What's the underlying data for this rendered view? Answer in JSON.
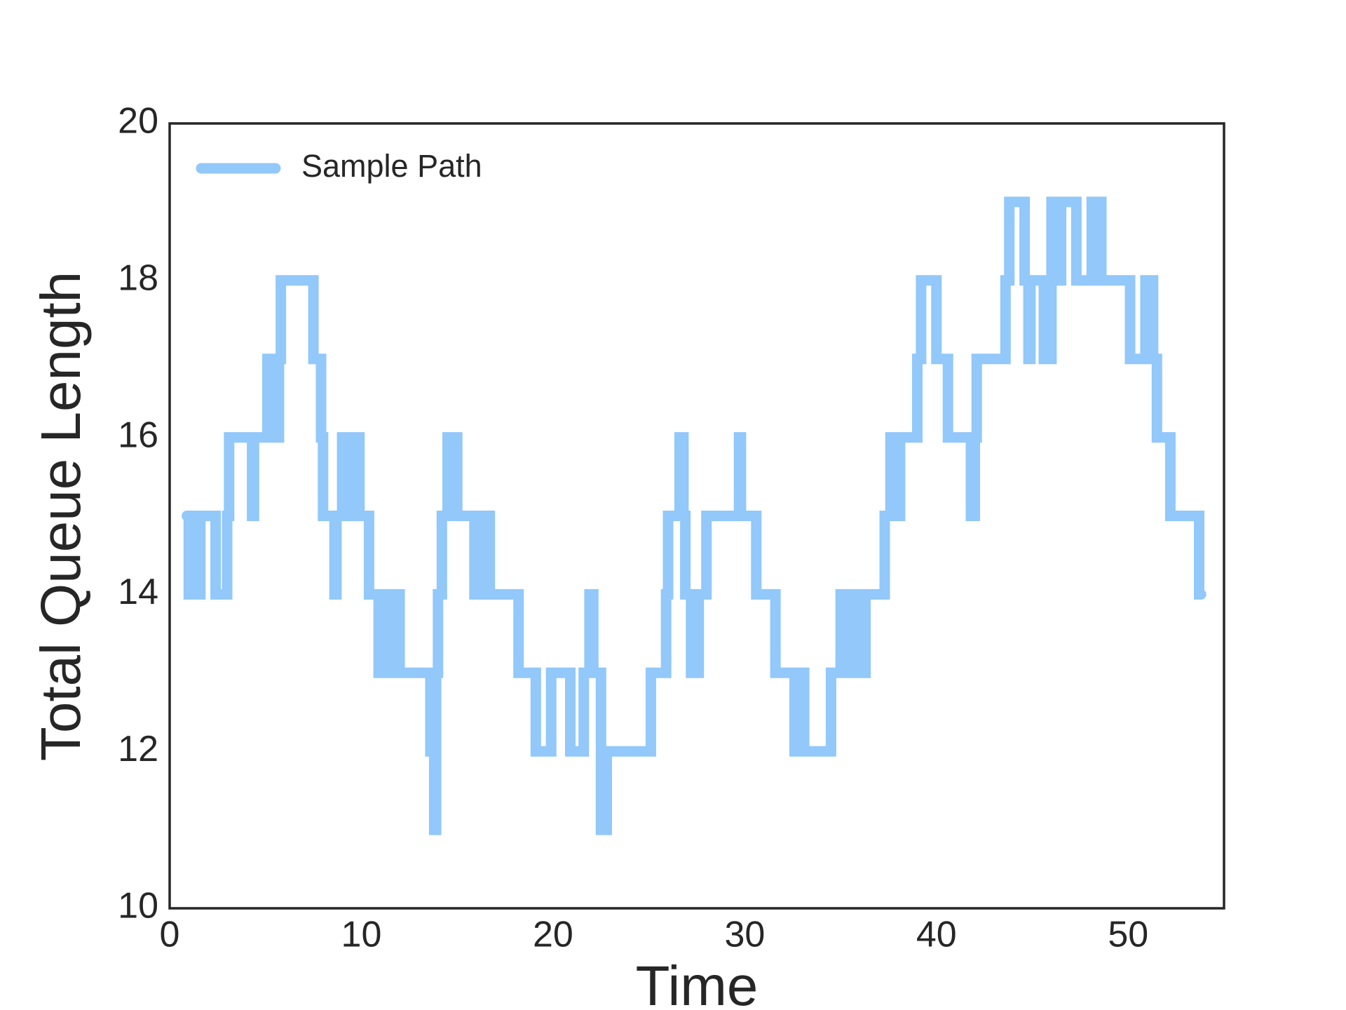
{
  "chart_data": {
    "type": "line",
    "drawstyle": "steps-post",
    "xlabel": "Time",
    "ylabel": "Total Queue Length",
    "xlim": [
      0,
      55
    ],
    "ylim": [
      10,
      20
    ],
    "xticks": [
      0,
      10,
      20,
      30,
      40,
      50
    ],
    "yticks": [
      10,
      12,
      14,
      16,
      18,
      20
    ],
    "legend": "upper left",
    "grid": false,
    "x": [
      0.9,
      1.0,
      1.2,
      1.3,
      1.6,
      2.4,
      3.0,
      3.1,
      4.3,
      4.4,
      5.1,
      5.2,
      5.3,
      5.6,
      5.7,
      5.8,
      7.5,
      7.9,
      8.0,
      8.6,
      8.7,
      9.0,
      9.3,
      9.4,
      9.9,
      10.4,
      10.9,
      11.0,
      11.2,
      11.4,
      11.6,
      11.8,
      12.0,
      13.6,
      13.7,
      13.8,
      13.9,
      14.0,
      14.2,
      14.5,
      14.6,
      14.7,
      14.8,
      14.9,
      15.0,
      15.9,
      16.0,
      16.2,
      16.3,
      16.5,
      16.6,
      16.7,
      18.2,
      19.1,
      19.9,
      20.9,
      21.6,
      21.9,
      22.1,
      22.5,
      22.6,
      22.7,
      22.8,
      25.1,
      25.9,
      26.0,
      26.6,
      26.8,
      26.9,
      27.2,
      27.3,
      27.4,
      27.6,
      28.0,
      29.7,
      29.8,
      30.6,
      31.6,
      32.6,
      32.7,
      32.8,
      33.0,
      33.1,
      34.5,
      35.0,
      35.2,
      35.3,
      35.6,
      35.7,
      36.1,
      36.3,
      37.3,
      37.6,
      37.7,
      37.8,
      38.0,
      38.1,
      39.0,
      39.2,
      40.0,
      40.6,
      41.8,
      42.0,
      42.1,
      43.6,
      43.8,
      44.6,
      44.8,
      44.9,
      45.6,
      45.7,
      45.9,
      46.0,
      46.3,
      46.5,
      47.3,
      48.1,
      48.2,
      48.4,
      48.6,
      50.1,
      50.9,
      51.0,
      51.1,
      51.3,
      51.5,
      52.2,
      53.7,
      53.8
    ],
    "series": [
      {
        "name": "Sample Path",
        "color": "#92c8fa",
        "values": [
          15,
          14,
          15,
          14,
          15,
          14,
          15,
          16,
          15,
          16,
          17,
          16,
          17,
          16,
          17,
          18,
          17,
          16,
          15,
          14,
          15,
          16,
          15,
          16,
          15,
          14,
          13,
          14,
          13,
          14,
          13,
          14,
          13,
          12,
          13,
          11,
          13,
          14,
          15,
          16,
          15,
          16,
          15,
          16,
          15,
          14,
          15,
          14,
          15,
          14,
          15,
          14,
          13,
          12,
          13,
          12,
          13,
          14,
          13,
          11,
          12,
          11,
          12,
          13,
          14,
          15,
          16,
          15,
          14,
          13,
          14,
          13,
          14,
          15,
          16,
          15,
          14,
          13,
          12,
          13,
          12,
          13,
          12,
          13,
          14,
          13,
          14,
          13,
          14,
          13,
          14,
          15,
          16,
          15,
          16,
          15,
          16,
          17,
          18,
          17,
          16,
          15,
          16,
          17,
          18,
          19,
          18,
          17,
          18,
          17,
          18,
          17,
          19,
          18,
          19,
          18,
          19,
          18,
          19,
          18,
          17,
          18,
          17,
          18,
          17,
          16,
          15,
          14,
          14
        ]
      }
    ]
  }
}
